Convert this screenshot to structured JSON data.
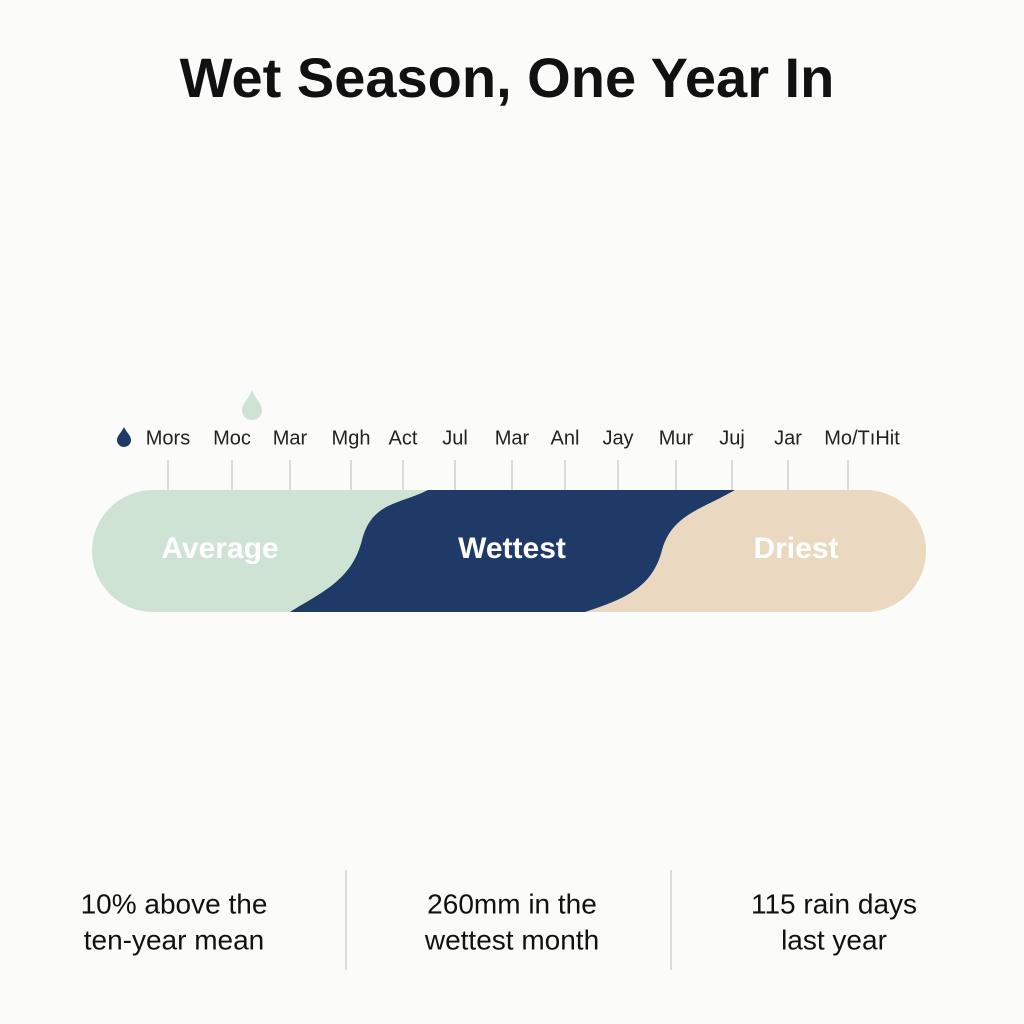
{
  "title": "Wet Season, One Year In",
  "months": [
    "Mors",
    "Moc",
    "Mar",
    "Mgh",
    "Act",
    "Jul",
    "Mar",
    "Anl",
    "Jay",
    "Mur",
    "Juj",
    "Jar",
    "Mo/TıHit"
  ],
  "segments": [
    "Average",
    "Wettest",
    "Driest"
  ],
  "stats": [
    {
      "lines": [
        "10% above the",
        "ten-year mean"
      ]
    },
    {
      "lines": [
        "260mm in the",
        "wettest month"
      ]
    },
    {
      "lines": [
        "115 rain days",
        "last year"
      ]
    }
  ]
}
